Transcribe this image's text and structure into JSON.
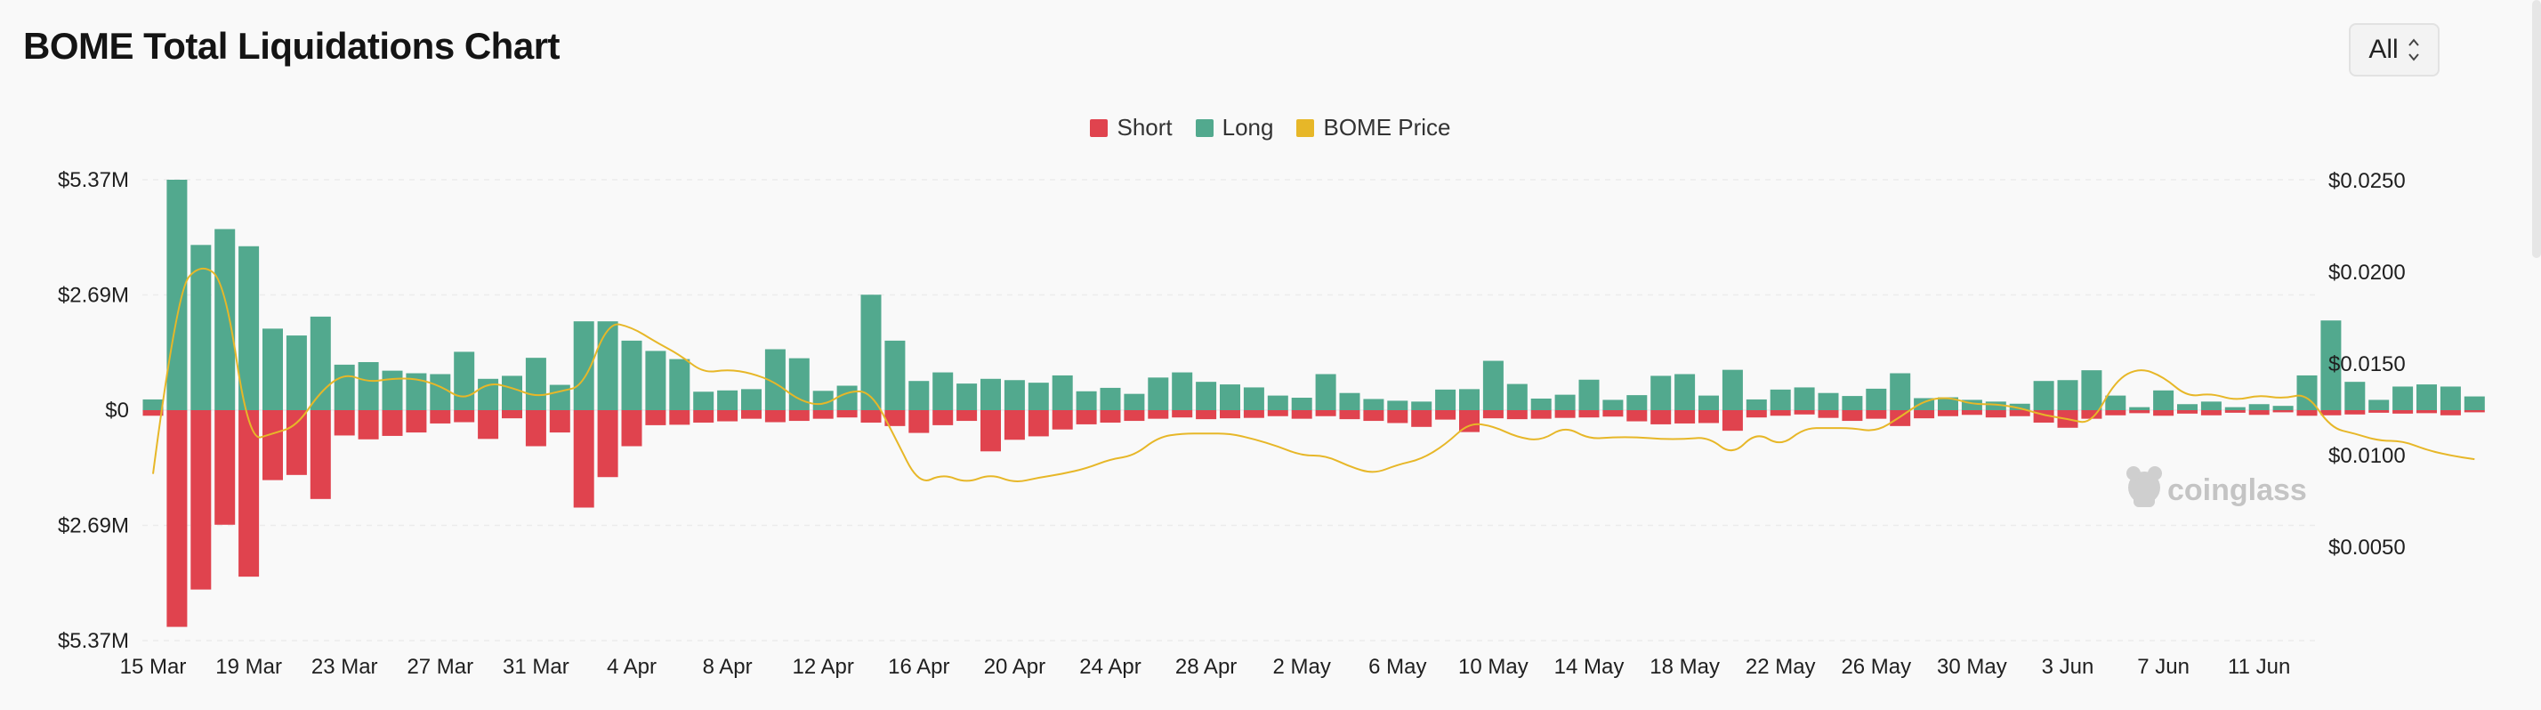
{
  "page": {
    "title": "BOME Total Liquidations Chart",
    "range_select": {
      "value": "All"
    },
    "watermark": "coinglass"
  },
  "colors": {
    "short": "#e0434e",
    "long": "#52a98e",
    "price": "#e7b728"
  },
  "chart_data": {
    "type": "bar",
    "title": "BOME Total Liquidations Chart",
    "legend": [
      "Short",
      "Long",
      "BOME Price"
    ],
    "legend_position": "top-center",
    "grid": true,
    "y_left_ticks": [
      "$5.37M",
      "$2.69M",
      "$0",
      "$2.69M",
      "$5.37M"
    ],
    "y_left_range": [
      -5.37,
      5.37
    ],
    "y_right_ticks": [
      "$0.0250",
      "$0.0200",
      "$0.0150",
      "$0.0100",
      "$0.0050"
    ],
    "y_right_range": [
      0,
      0.025
    ],
    "x_ticks": [
      "15 Mar",
      "19 Mar",
      "23 Mar",
      "27 Mar",
      "31 Mar",
      "4 Apr",
      "8 Apr",
      "12 Apr",
      "16 Apr",
      "20 Apr",
      "24 Apr",
      "28 Apr",
      "2 May",
      "6 May",
      "10 May",
      "14 May",
      "18 May",
      "22 May",
      "26 May",
      "30 May",
      "3 Jun",
      "7 Jun",
      "11 Jun"
    ],
    "start_date": "15 Mar",
    "series": [
      {
        "name": "Long",
        "unit": "$M",
        "values": [
          0.25,
          5.37,
          3.85,
          4.22,
          3.82,
          1.9,
          1.74,
          2.18,
          1.06,
          1.12,
          0.92,
          0.86,
          0.84,
          1.36,
          0.73,
          0.8,
          1.22,
          0.59,
          2.07,
          2.07,
          1.62,
          1.38,
          1.19,
          0.43,
          0.46,
          0.49,
          1.42,
          1.21,
          0.45,
          0.57,
          2.69,
          1.62,
          0.68,
          0.88,
          0.62,
          0.73,
          0.7,
          0.64,
          0.81,
          0.44,
          0.52,
          0.38,
          0.76,
          0.88,
          0.66,
          0.6,
          0.53,
          0.34,
          0.29,
          0.84,
          0.4,
          0.26,
          0.22,
          0.2,
          0.48,
          0.49,
          1.15,
          0.61,
          0.27,
          0.36,
          0.71,
          0.24,
          0.35,
          0.8,
          0.84,
          0.34,
          0.94,
          0.25,
          0.48,
          0.53,
          0.4,
          0.33,
          0.5,
          0.86,
          0.28,
          0.3,
          0.24,
          0.2,
          0.15,
          0.68,
          0.7,
          0.93,
          0.34,
          0.07,
          0.46,
          0.14,
          0.2,
          0.07,
          0.14,
          0.1,
          0.81,
          2.09,
          0.66,
          0.24,
          0.55,
          0.6,
          0.55,
          0.32
        ]
      },
      {
        "name": "Short",
        "unit": "$M",
        "values": [
          0.13,
          5.05,
          4.18,
          2.67,
          3.88,
          1.63,
          1.51,
          2.07,
          0.59,
          0.68,
          0.6,
          0.52,
          0.31,
          0.28,
          0.67,
          0.19,
          0.84,
          0.52,
          2.27,
          1.56,
          0.84,
          0.35,
          0.34,
          0.29,
          0.26,
          0.2,
          0.28,
          0.25,
          0.2,
          0.17,
          0.29,
          0.37,
          0.53,
          0.35,
          0.25,
          0.96,
          0.69,
          0.61,
          0.45,
          0.33,
          0.29,
          0.25,
          0.2,
          0.17,
          0.21,
          0.19,
          0.18,
          0.14,
          0.2,
          0.14,
          0.21,
          0.25,
          0.3,
          0.39,
          0.22,
          0.51,
          0.19,
          0.21,
          0.2,
          0.18,
          0.17,
          0.15,
          0.26,
          0.33,
          0.31,
          0.3,
          0.48,
          0.17,
          0.13,
          0.1,
          0.18,
          0.25,
          0.2,
          0.37,
          0.19,
          0.14,
          0.11,
          0.17,
          0.14,
          0.29,
          0.41,
          0.2,
          0.12,
          0.07,
          0.13,
          0.08,
          0.12,
          0.06,
          0.11,
          0.05,
          0.13,
          0.12,
          0.1,
          0.06,
          0.08,
          0.07,
          0.12,
          0.05
        ]
      },
      {
        "name": "BOME Price",
        "unit": "$",
        "values": [
          0.009,
          0.019,
          0.0205,
          0.0195,
          0.0108,
          0.0112,
          0.0116,
          0.0135,
          0.0145,
          0.014,
          0.0142,
          0.0142,
          0.0138,
          0.013,
          0.014,
          0.0137,
          0.0132,
          0.0135,
          0.0138,
          0.0173,
          0.017,
          0.0162,
          0.0155,
          0.0145,
          0.0147,
          0.0145,
          0.014,
          0.013,
          0.0127,
          0.0135,
          0.0135,
          0.011,
          0.0084,
          0.009,
          0.0085,
          0.009,
          0.0085,
          0.0088,
          0.009,
          0.0093,
          0.0098,
          0.01,
          0.011,
          0.0112,
          0.0112,
          0.0112,
          0.0109,
          0.0105,
          0.01,
          0.01,
          0.0094,
          0.009,
          0.0095,
          0.0098,
          0.0106,
          0.0118,
          0.0116,
          0.011,
          0.0108,
          0.0116,
          0.0109,
          0.011,
          0.011,
          0.0109,
          0.0109,
          0.011,
          0.01,
          0.0113,
          0.0105,
          0.0115,
          0.0115,
          0.0115,
          0.0113,
          0.0121,
          0.013,
          0.0132,
          0.0128,
          0.0128,
          0.0126,
          0.0122,
          0.012,
          0.0117,
          0.0141,
          0.0148,
          0.0143,
          0.0132,
          0.0134,
          0.013,
          0.0133,
          0.0131,
          0.0134,
          0.0115,
          0.0112,
          0.0108,
          0.0108,
          0.0103,
          0.01,
          0.0098
        ]
      }
    ]
  }
}
